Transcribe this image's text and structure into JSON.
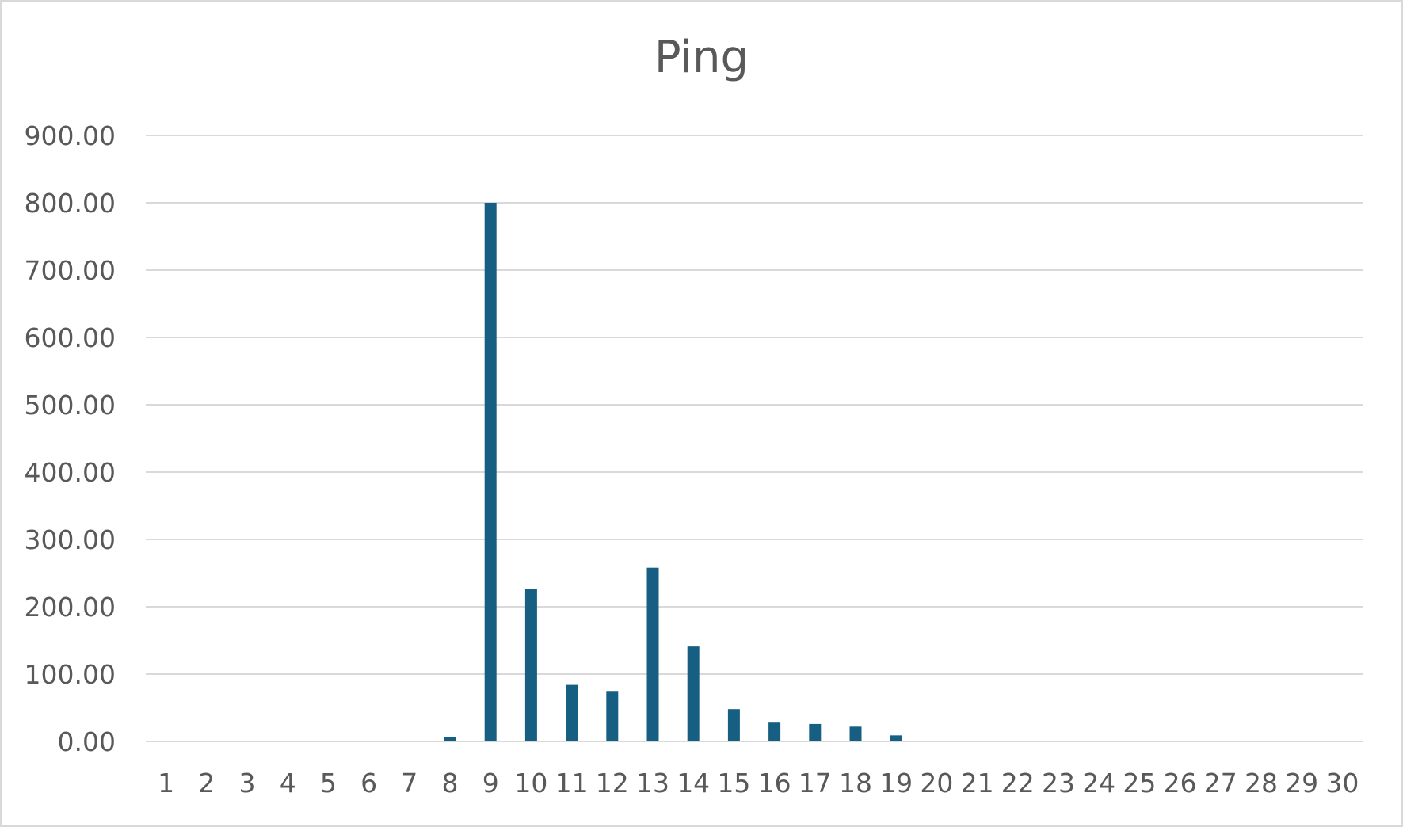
{
  "chart_data": {
    "type": "bar",
    "title": "Ping",
    "xlabel": "",
    "ylabel": "",
    "categories": [
      "1",
      "2",
      "3",
      "4",
      "5",
      "6",
      "7",
      "8",
      "9",
      "10",
      "11",
      "12",
      "13",
      "14",
      "15",
      "16",
      "17",
      "18",
      "19",
      "20",
      "21",
      "22",
      "23",
      "24",
      "25",
      "26",
      "27",
      "28",
      "29",
      "30"
    ],
    "series": [
      {
        "values": [
          0,
          0,
          0,
          0,
          0,
          0,
          0,
          7,
          800,
          227,
          84,
          75,
          258,
          141,
          48,
          28,
          26,
          22,
          9,
          0,
          0,
          0,
          0,
          0,
          0,
          0,
          0,
          0,
          0,
          0
        ]
      }
    ],
    "y_ticks": [
      "0.00",
      "100.00",
      "200.00",
      "300.00",
      "400.00",
      "500.00",
      "600.00",
      "700.00",
      "800.00",
      "900.00"
    ],
    "ylim": [
      0,
      900
    ],
    "grid": true,
    "legend": "none",
    "colors": {
      "bar": "#175f82",
      "grid": "#d9d9d9",
      "text": "#595959"
    }
  }
}
